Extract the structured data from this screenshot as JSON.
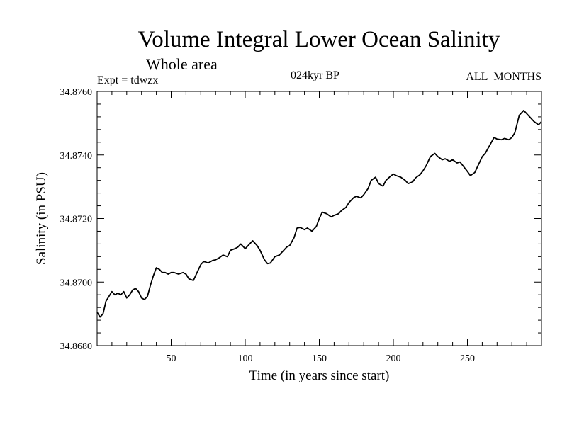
{
  "chart_data": {
    "type": "line",
    "title": "Volume Integral Lower Ocean Salinity",
    "subtitle": "Whole area",
    "annotations": {
      "left": "Expt = tdwzx",
      "center": "024kyr BP",
      "right": "ALL_MONTHS"
    },
    "xlabel": "Time (in years since start)",
    "ylabel": "Salinity (in PSU)",
    "xlim": [
      0,
      300
    ],
    "ylim": [
      34.868,
      34.876
    ],
    "xticks": [
      {
        "value": 50,
        "label": "50"
      },
      {
        "value": 100,
        "label": "100"
      },
      {
        "value": 150,
        "label": "150"
      },
      {
        "value": 200,
        "label": "200"
      },
      {
        "value": 250,
        "label": "250"
      }
    ],
    "yticks": [
      {
        "value": 34.868,
        "label": "34.8680"
      },
      {
        "value": 34.87,
        "label": "34.8700"
      },
      {
        "value": 34.872,
        "label": "34.8720"
      },
      {
        "value": 34.874,
        "label": "34.8740"
      },
      {
        "value": 34.876,
        "label": "34.8760"
      }
    ],
    "grid": false,
    "series": [
      {
        "color": "#000000",
        "x": [
          0,
          2,
          4,
          6,
          8,
          10,
          12,
          14,
          16,
          18,
          20,
          22,
          24,
          26,
          28,
          30,
          32,
          34,
          36,
          38,
          40,
          42,
          44,
          46,
          48,
          50,
          52,
          55,
          58,
          60,
          62,
          65,
          68,
          70,
          72,
          75,
          78,
          80,
          82,
          85,
          88,
          90,
          93,
          95,
          97,
          100,
          103,
          105,
          108,
          110,
          113,
          115,
          117,
          120,
          123,
          125,
          128,
          130,
          133,
          135,
          137,
          140,
          142,
          145,
          148,
          150,
          152,
          155,
          158,
          160,
          163,
          165,
          168,
          170,
          173,
          175,
          178,
          180,
          183,
          185,
          188,
          190,
          193,
          195,
          198,
          200,
          202,
          205,
          208,
          210,
          213,
          215,
          218,
          220,
          222,
          225,
          228,
          230,
          233,
          235,
          238,
          240,
          243,
          245,
          248,
          250,
          252,
          255,
          258,
          260,
          262,
          265,
          268,
          270,
          273,
          275,
          278,
          280,
          282,
          285,
          288,
          290,
          293,
          295,
          298,
          300
        ],
        "y": [
          34.86905,
          34.8689,
          34.869,
          34.8694,
          34.86955,
          34.8697,
          34.8696,
          34.86965,
          34.8696,
          34.8697,
          34.8695,
          34.8696,
          34.86975,
          34.8698,
          34.8697,
          34.8695,
          34.86945,
          34.86955,
          34.8699,
          34.8702,
          34.87045,
          34.8704,
          34.8703,
          34.8703,
          34.87025,
          34.8703,
          34.8703,
          34.87025,
          34.8703,
          34.87025,
          34.8701,
          34.87005,
          34.87035,
          34.87055,
          34.87065,
          34.8706,
          34.87068,
          34.8707,
          34.87075,
          34.87085,
          34.8708,
          34.871,
          34.87105,
          34.8711,
          34.8712,
          34.87105,
          34.8712,
          34.8713,
          34.87115,
          34.871,
          34.8707,
          34.87058,
          34.8706,
          34.8708,
          34.87085,
          34.87095,
          34.8711,
          34.87115,
          34.8714,
          34.8717,
          34.87172,
          34.87165,
          34.8717,
          34.8716,
          34.87175,
          34.872,
          34.8722,
          34.87215,
          34.87205,
          34.8721,
          34.87215,
          34.87225,
          34.87235,
          34.8725,
          34.87265,
          34.8727,
          34.87265,
          34.87275,
          34.87295,
          34.8732,
          34.8733,
          34.8731,
          34.87302,
          34.8732,
          34.87333,
          34.8734,
          34.87335,
          34.8733,
          34.8732,
          34.8731,
          34.87315,
          34.87328,
          34.87338,
          34.8735,
          34.87365,
          34.87395,
          34.87405,
          34.87395,
          34.87385,
          34.87388,
          34.8738,
          34.87385,
          34.87375,
          34.87378,
          34.8736,
          34.87348,
          34.87335,
          34.87345,
          34.87375,
          34.87395,
          34.87405,
          34.8743,
          34.87455,
          34.8745,
          34.87448,
          34.87452,
          34.87448,
          34.87455,
          34.8747,
          34.87525,
          34.8754,
          34.8753,
          34.87515,
          34.87505,
          34.87495,
          34.87505
        ]
      }
    ]
  }
}
